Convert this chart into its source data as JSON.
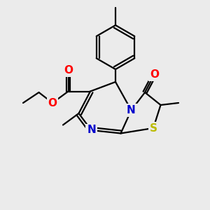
{
  "bg_color": "#ebebeb",
  "bond_color": "#000000",
  "bond_width": 1.6,
  "atom_colors": {
    "O": "#ff0000",
    "N": "#0000cc",
    "S": "#bbbb00",
    "C": "#000000"
  },
  "font_size_atom": 11
}
